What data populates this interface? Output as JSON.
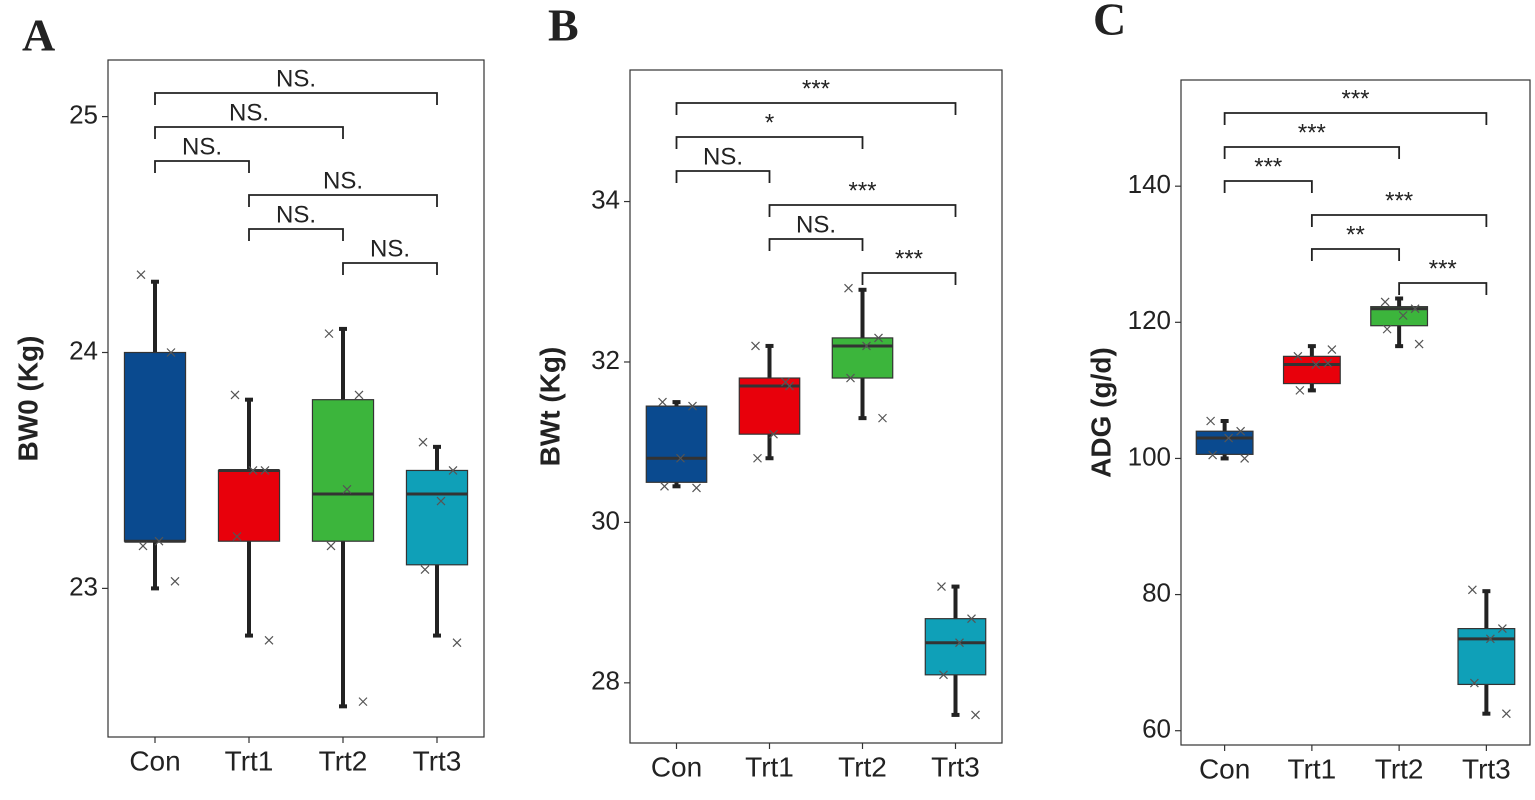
{
  "chart_data": [
    {
      "type": "box",
      "panel_label": "A",
      "y_label": "BW0 (Kg)",
      "categories": [
        "Con",
        "Trt1",
        "Trt2",
        "Trt3"
      ],
      "colors": [
        "#0a4a8f",
        "#e8000b",
        "#3cb53c",
        "#0fa0b8"
      ],
      "ylim": [
        22.37,
        25.24
      ],
      "yticks": [
        23,
        24,
        25
      ],
      "boxes": [
        {
          "low": 23.0,
          "q1": 23.2,
          "median": 23.2,
          "q3": 24.0,
          "high": 24.3,
          "points": [
            24.33,
            24.0,
            23.2,
            23.18,
            23.03
          ]
        },
        {
          "low": 22.8,
          "q1": 23.2,
          "median": 23.5,
          "q3": 23.5,
          "high": 23.8,
          "points": [
            23.82,
            23.5,
            23.5,
            23.22,
            22.78
          ]
        },
        {
          "low": 22.5,
          "q1": 23.2,
          "median": 23.4,
          "q3": 23.8,
          "high": 24.1,
          "points": [
            24.08,
            23.82,
            23.42,
            23.18,
            22.52
          ]
        },
        {
          "low": 22.8,
          "q1": 23.1,
          "median": 23.4,
          "q3": 23.5,
          "high": 23.6,
          "points": [
            23.62,
            23.5,
            23.37,
            23.08,
            22.77
          ]
        }
      ],
      "comparisons": [
        {
          "groups": [
            0,
            3
          ],
          "label": "NS."
        },
        {
          "groups": [
            0,
            2
          ],
          "label": "NS."
        },
        {
          "groups": [
            0,
            1
          ],
          "label": "NS."
        },
        {
          "groups": [
            1,
            3
          ],
          "label": "NS."
        },
        {
          "groups": [
            1,
            2
          ],
          "label": "NS."
        },
        {
          "groups": [
            2,
            3
          ],
          "label": "NS."
        }
      ]
    },
    {
      "type": "box",
      "panel_label": "B",
      "y_label": "BWt (Kg)",
      "categories": [
        "Con",
        "Trt1",
        "Trt2",
        "Trt3"
      ],
      "colors": [
        "#0a4a8f",
        "#e8000b",
        "#3cb53c",
        "#0fa0b8"
      ],
      "ylim": [
        27.25,
        35.64
      ],
      "yticks": [
        28,
        30,
        32,
        34
      ],
      "boxes": [
        {
          "low": 30.45,
          "q1": 30.5,
          "median": 30.8,
          "q3": 31.45,
          "high": 31.5,
          "points": [
            31.5,
            31.45,
            30.8,
            30.45,
            30.43
          ]
        },
        {
          "low": 30.8,
          "q1": 31.1,
          "median": 31.7,
          "q3": 31.8,
          "high": 32.2,
          "points": [
            32.2,
            31.75,
            31.1,
            30.8,
            31.7
          ]
        },
        {
          "low": 31.3,
          "q1": 31.8,
          "median": 32.2,
          "q3": 32.3,
          "high": 32.9,
          "points": [
            32.92,
            32.3,
            32.2,
            31.8,
            31.3
          ]
        },
        {
          "low": 27.6,
          "q1": 28.1,
          "median": 28.5,
          "q3": 28.8,
          "high": 29.2,
          "points": [
            29.2,
            28.8,
            28.5,
            28.1,
            27.6
          ]
        }
      ],
      "comparisons": [
        {
          "groups": [
            0,
            3
          ],
          "label": "***"
        },
        {
          "groups": [
            0,
            2
          ],
          "label": "*"
        },
        {
          "groups": [
            0,
            1
          ],
          "label": "NS."
        },
        {
          "groups": [
            1,
            3
          ],
          "label": "***"
        },
        {
          "groups": [
            1,
            2
          ],
          "label": "NS."
        },
        {
          "groups": [
            2,
            3
          ],
          "label": "***"
        }
      ]
    },
    {
      "type": "box",
      "panel_label": "C",
      "y_label": "ADG (g/d)",
      "categories": [
        "Con",
        "Trt1",
        "Trt2",
        "Trt3"
      ],
      "colors": [
        "#0a4a8f",
        "#e8000b",
        "#3cb53c",
        "#0fa0b8"
      ],
      "ylim": [
        57.9,
        155.6
      ],
      "yticks": [
        60,
        80,
        100,
        120,
        140
      ],
      "boxes": [
        {
          "low": 100,
          "q1": 100.6,
          "median": 103,
          "q3": 104,
          "high": 105.5,
          "points": [
            105.5,
            104,
            103,
            100.5,
            100
          ]
        },
        {
          "low": 110,
          "q1": 111,
          "median": 113.8,
          "q3": 115,
          "high": 116.5,
          "points": [
            115,
            114,
            113.8,
            110,
            116
          ]
        },
        {
          "low": 116.5,
          "q1": 119.5,
          "median": 122,
          "q3": 122.3,
          "high": 123.5,
          "points": [
            123,
            122,
            121,
            119,
            116.8
          ]
        },
        {
          "low": 62.5,
          "q1": 66.8,
          "median": 73.5,
          "q3": 75,
          "high": 80.5,
          "points": [
            80.7,
            75,
            73.5,
            67,
            62.5
          ]
        }
      ],
      "comparisons": [
        {
          "groups": [
            0,
            3
          ],
          "label": "***"
        },
        {
          "groups": [
            0,
            2
          ],
          "label": "***"
        },
        {
          "groups": [
            0,
            1
          ],
          "label": "***"
        },
        {
          "groups": [
            1,
            3
          ],
          "label": "***"
        },
        {
          "groups": [
            1,
            2
          ],
          "label": "**"
        },
        {
          "groups": [
            2,
            3
          ],
          "label": "***"
        }
      ]
    }
  ]
}
